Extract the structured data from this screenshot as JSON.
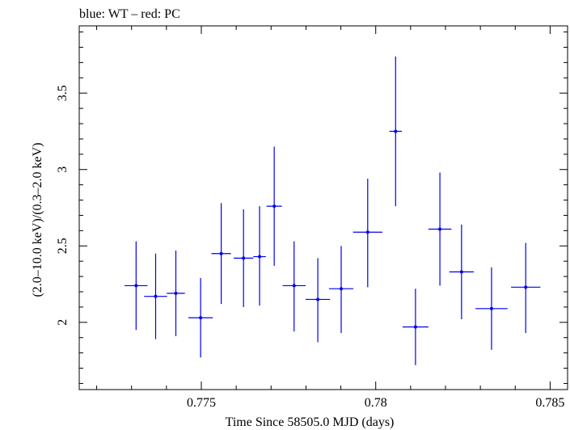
{
  "chart_data": {
    "type": "scatter",
    "title": "blue: WT – red: PC",
    "xlabel": "Time Since 58505.0 MJD (days)",
    "ylabel": "(2.0–10.0 keV)/(0.3–2.0 keV)",
    "xlim": [
      0.7715,
      0.7855
    ],
    "ylim": [
      1.56,
      3.94
    ],
    "xticks": [
      {
        "value": 0.775,
        "label": "0.775"
      },
      {
        "value": 0.78,
        "label": "0.78"
      },
      {
        "value": 0.785,
        "label": "0.785"
      }
    ],
    "yticks": [
      {
        "value": 2.0,
        "label": "2"
      },
      {
        "value": 2.5,
        "label": "2.5"
      },
      {
        "value": 3.0,
        "label": "3"
      },
      {
        "value": 3.5,
        "label": "3.5"
      }
    ],
    "grid": false,
    "legend": "none",
    "series": [
      {
        "name": "WT",
        "color": "#0000ee",
        "points": [
          {
            "x": 0.77313,
            "xerr": 0.00033,
            "y": 2.24,
            "ylo": 1.95,
            "yhi": 2.53
          },
          {
            "x": 0.77369,
            "xerr": 0.00033,
            "y": 2.17,
            "ylo": 1.89,
            "yhi": 2.45
          },
          {
            "x": 0.77427,
            "xerr": 0.00026,
            "y": 2.19,
            "ylo": 1.91,
            "yhi": 2.47
          },
          {
            "x": 0.77498,
            "xerr": 0.00035,
            "y": 2.03,
            "ylo": 1.77,
            "yhi": 2.29
          },
          {
            "x": 0.77557,
            "xerr": 0.00028,
            "y": 2.45,
            "ylo": 2.12,
            "yhi": 2.78
          },
          {
            "x": 0.77621,
            "xerr": 0.00028,
            "y": 2.42,
            "ylo": 2.1,
            "yhi": 2.74
          },
          {
            "x": 0.77667,
            "xerr": 0.00018,
            "y": 2.43,
            "ylo": 2.11,
            "yhi": 2.76
          },
          {
            "x": 0.77709,
            "xerr": 0.00022,
            "y": 2.76,
            "ylo": 2.37,
            "yhi": 3.15
          },
          {
            "x": 0.77766,
            "xerr": 0.00033,
            "y": 2.24,
            "ylo": 1.94,
            "yhi": 2.53
          },
          {
            "x": 0.77834,
            "xerr": 0.00035,
            "y": 2.15,
            "ylo": 1.87,
            "yhi": 2.42
          },
          {
            "x": 0.77901,
            "xerr": 0.00035,
            "y": 2.22,
            "ylo": 1.93,
            "yhi": 2.5
          },
          {
            "x": 0.77977,
            "xerr": 0.00042,
            "y": 2.59,
            "ylo": 2.23,
            "yhi": 2.94
          },
          {
            "x": 0.78057,
            "xerr": 0.00018,
            "y": 3.25,
            "ylo": 2.76,
            "yhi": 3.74
          },
          {
            "x": 0.78114,
            "xerr": 0.00037,
            "y": 1.97,
            "ylo": 1.72,
            "yhi": 2.22
          },
          {
            "x": 0.78184,
            "xerr": 0.00033,
            "y": 2.61,
            "ylo": 2.24,
            "yhi": 2.98
          },
          {
            "x": 0.78246,
            "xerr": 0.00035,
            "y": 2.33,
            "ylo": 2.02,
            "yhi": 2.64
          },
          {
            "x": 0.78332,
            "xerr": 0.00046,
            "y": 2.09,
            "ylo": 1.82,
            "yhi": 2.36
          },
          {
            "x": 0.7843,
            "xerr": 0.00042,
            "y": 2.23,
            "ylo": 1.93,
            "yhi": 2.52
          }
        ]
      }
    ]
  }
}
